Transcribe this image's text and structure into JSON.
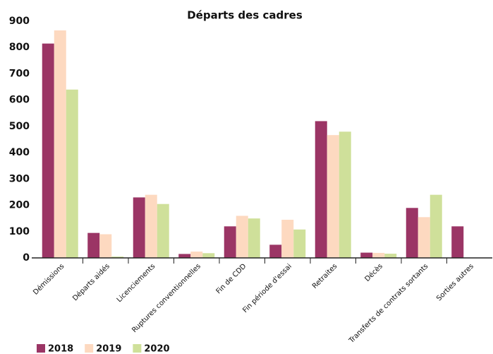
{
  "chart_data": {
    "type": "bar",
    "title": "Départs des cadres",
    "categories": [
      "Démissions",
      "Départs aidés",
      "Licenciements",
      "Ruptures conventionnelles",
      "Fin de CDD",
      "Fin période d'essai",
      "Retraites",
      "Décès",
      "Transferts de contrats sortants",
      "Sorties autres"
    ],
    "series": [
      {
        "name": "2018",
        "color": "#9b3565",
        "values": [
          815,
          95,
          230,
          15,
          120,
          50,
          520,
          20,
          190,
          120
        ]
      },
      {
        "name": "2019",
        "color": "#fdd9c0",
        "values": [
          865,
          90,
          240,
          24,
          160,
          145,
          467,
          19,
          155,
          0
        ]
      },
      {
        "name": "2020",
        "color": "#cfe09a",
        "values": [
          640,
          5,
          205,
          18,
          150,
          108,
          480,
          16,
          240,
          0
        ]
      }
    ],
    "ylim": [
      0,
      900
    ],
    "yticks": [
      0,
      100,
      200,
      300,
      400,
      500,
      600,
      700,
      800,
      900
    ],
    "grid": false,
    "legend": "bottom-left"
  }
}
